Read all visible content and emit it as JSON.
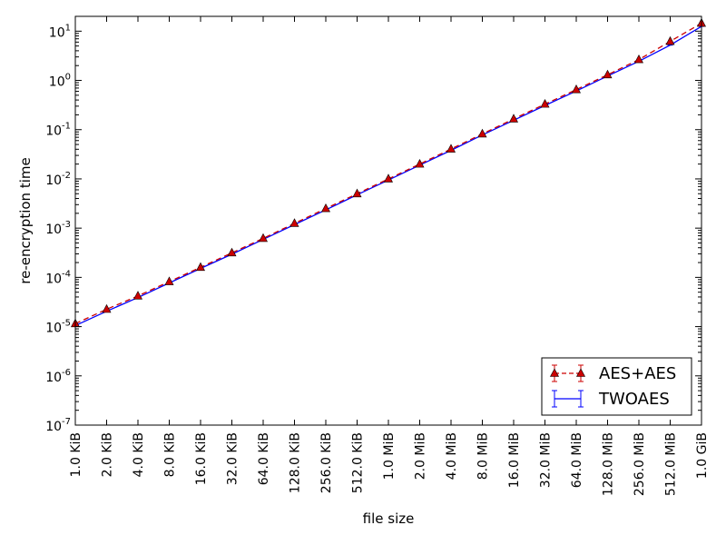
{
  "chart_data": {
    "type": "line",
    "xlabel": "file size",
    "ylabel": "re-encryption time",
    "y_scale": "log",
    "ylim": [
      1e-07,
      20
    ],
    "grid": false,
    "legend_position": "lower-right",
    "categories": [
      "1.0 KiB",
      "2.0 KiB",
      "4.0 KiB",
      "8.0 KiB",
      "16.0 KiB",
      "32.0 KiB",
      "64.0 KiB",
      "128.0 KiB",
      "256.0 KiB",
      "512.0 KiB",
      "1.0 MiB",
      "2.0 MiB",
      "4.0 MiB",
      "8.0 MiB",
      "16.0 MiB",
      "32.0 MiB",
      "64.0 MiB",
      "128.0 MiB",
      "256.0 MiB",
      "512.0 MiB",
      "1.0 GiB"
    ],
    "y_ticks": [
      {
        "base": "10",
        "exp": "-7"
      },
      {
        "base": "10",
        "exp": "-6"
      },
      {
        "base": "10",
        "exp": "-5"
      },
      {
        "base": "10",
        "exp": "-4"
      },
      {
        "base": "10",
        "exp": "-3"
      },
      {
        "base": "10",
        "exp": "-2"
      },
      {
        "base": "10",
        "exp": "-1"
      },
      {
        "base": "10",
        "exp": "0"
      },
      {
        "base": "10",
        "exp": "1"
      }
    ],
    "series": [
      {
        "name": "AES+AES",
        "color": "#cc0000",
        "line_style": "dashed",
        "marker": "triangle",
        "values": [
          1.15e-05,
          2.25e-05,
          4.2e-05,
          8.2e-05,
          0.00016,
          0.000315,
          0.00062,
          0.00125,
          0.0025,
          0.005,
          0.01,
          0.02,
          0.0405,
          0.082,
          0.165,
          0.33,
          0.65,
          1.3,
          2.65,
          6.2,
          14.5
        ]
      },
      {
        "name": "TWOAES",
        "color": "#0000ff",
        "line_style": "solid",
        "marker": "errorbar",
        "values": [
          1.05e-05,
          2.05e-05,
          3.9e-05,
          7.7e-05,
          0.000152,
          0.000295,
          0.00059,
          0.00118,
          0.00235,
          0.00475,
          0.0095,
          0.019,
          0.038,
          0.078,
          0.155,
          0.31,
          0.61,
          1.23,
          2.45,
          5.2,
          12.5
        ]
      }
    ]
  }
}
